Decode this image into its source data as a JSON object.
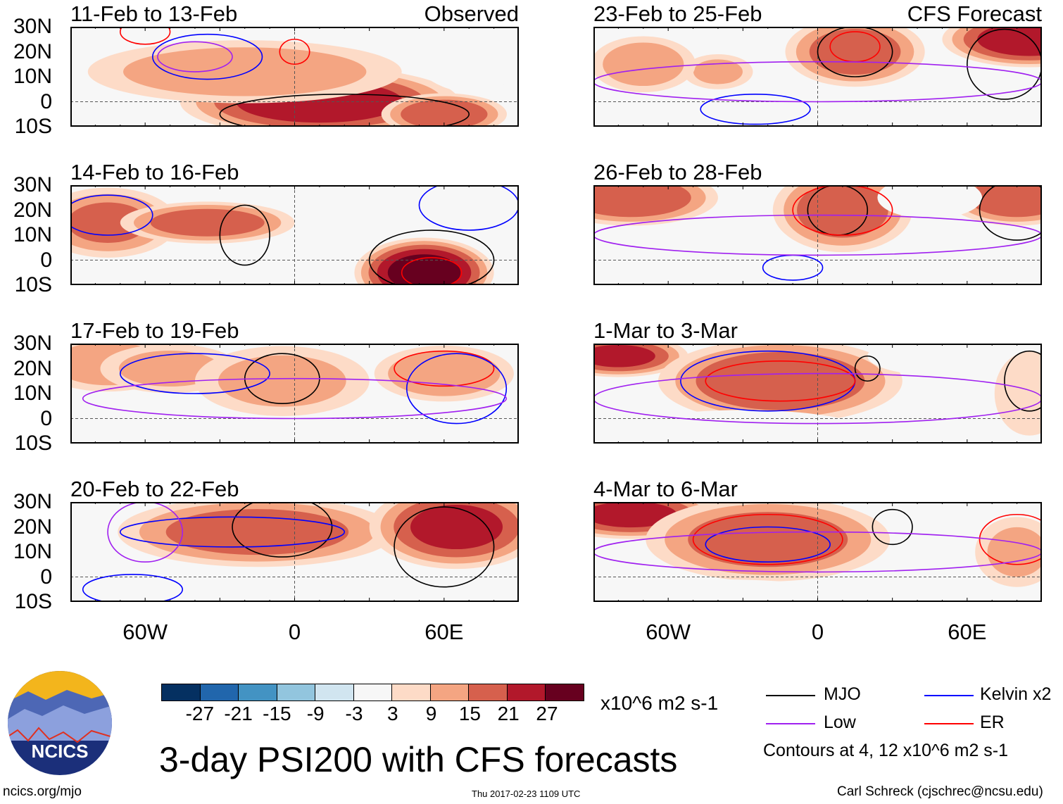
{
  "title": "3-day PSI200 with CFS forecasts",
  "footer": {
    "left": "ncics.org/mjo",
    "center": "Thu 2017-02-23 1109 UTC",
    "right": "Carl Schreck (cjschrec@ncsu.edu)"
  },
  "logo_text": "NCICS",
  "lat_labels": [
    "30N",
    "20N",
    "10N",
    "0",
    "10S"
  ],
  "lon_labels": [
    "60W",
    "0",
    "60E"
  ],
  "colorbar": {
    "colors": [
      "#053061",
      "#2166ac",
      "#4393c3",
      "#92c5de",
      "#d1e5f0",
      "#f7f7f7",
      "#fddbc7",
      "#f4a582",
      "#d6604d",
      "#b2182b",
      "#67001f"
    ],
    "labels": [
      "-27",
      "-21",
      "-15",
      "-9",
      "-3",
      "3",
      "9",
      "15",
      "21",
      "27"
    ],
    "units": "x10^6 m2 s-1"
  },
  "legend": {
    "items": [
      {
        "label": "MJO",
        "color": "#000000"
      },
      {
        "label": "Kelvin x2",
        "color": "#0000ff"
      },
      {
        "label": "Low",
        "color": "#a020f0"
      },
      {
        "label": "ER",
        "color": "#ff0000"
      }
    ],
    "note": "Contours at 4, 12 x10^6 m2 s-1"
  },
  "panels": [
    {
      "title": "11-Feb to 13-Feb",
      "label": "Observed",
      "anoms": [
        [
          35,
          25,
          -30,
          35,
          10
        ],
        [
          -30,
          20,
          -15,
          45,
          8
        ],
        [
          10,
          0,
          25,
          40,
          10
        ],
        [
          -20,
          12,
          12,
          45,
          9
        ],
        [
          60,
          -5,
          20,
          18,
          6
        ],
        [
          75,
          20,
          -18,
          20,
          12
        ]
      ],
      "contours": [
        [
          "#a020f0",
          -40,
          18,
          15,
          6
        ],
        [
          "#0000ff",
          -35,
          18,
          22,
          9
        ],
        [
          "#ff0000",
          0,
          20,
          6,
          5
        ],
        [
          "#000000",
          20,
          -5,
          50,
          8
        ],
        [
          "#ff0000",
          -60,
          28,
          10,
          5
        ]
      ]
    },
    {
      "title": "14-Feb to 16-Feb",
      "label": "",
      "anoms": [
        [
          -75,
          15,
          15,
          20,
          10
        ],
        [
          -35,
          15,
          18,
          25,
          6
        ],
        [
          40,
          27,
          -28,
          30,
          8
        ],
        [
          85,
          12,
          -30,
          20,
          14
        ],
        [
          52,
          -5,
          30,
          20,
          10
        ]
      ],
      "contours": [
        [
          "#0000ff",
          -75,
          18,
          18,
          8
        ],
        [
          "#000000",
          -20,
          10,
          10,
          12
        ],
        [
          "#000000",
          55,
          0,
          25,
          12
        ],
        [
          "#ff0000",
          55,
          -5,
          12,
          6
        ],
        [
          "#0000ff",
          70,
          22,
          20,
          10
        ]
      ]
    },
    {
      "title": "17-Feb to 19-Feb",
      "label": "",
      "anoms": [
        [
          -75,
          22,
          12,
          20,
          8
        ],
        [
          -50,
          20,
          10,
          20,
          7
        ],
        [
          -5,
          15,
          10,
          25,
          10
        ],
        [
          80,
          5,
          -20,
          25,
          18
        ],
        [
          -40,
          -5,
          -9,
          18,
          6
        ],
        [
          60,
          18,
          14,
          20,
          8
        ]
      ],
      "contours": [
        [
          "#000000",
          -5,
          16,
          15,
          10
        ],
        [
          "#0000ff",
          -40,
          18,
          30,
          8
        ],
        [
          "#ff0000",
          60,
          20,
          20,
          7
        ],
        [
          "#0000ff",
          65,
          12,
          20,
          14
        ],
        [
          "#a020f0",
          0,
          8,
          85,
          8
        ]
      ]
    },
    {
      "title": "20-Feb to 22-Feb",
      "label": "",
      "anoms": [
        [
          -60,
          20,
          -25,
          15,
          12
        ],
        [
          -15,
          18,
          18,
          40,
          10
        ],
        [
          65,
          20,
          22,
          25,
          12
        ],
        [
          -35,
          -5,
          -9,
          18,
          6
        ]
      ],
      "contours": [
        [
          "#000000",
          -5,
          20,
          20,
          12
        ],
        [
          "#0000ff",
          -25,
          18,
          45,
          6
        ],
        [
          "#000000",
          60,
          12,
          20,
          16
        ],
        [
          "#a020f0",
          -60,
          18,
          15,
          12
        ],
        [
          "#0000ff",
          -65,
          -5,
          20,
          6
        ]
      ]
    },
    {
      "title": "23-Feb to 25-Feb",
      "label": "CFS Forecast",
      "anoms": [
        [
          15,
          20,
          18,
          20,
          10
        ],
        [
          85,
          25,
          25,
          25,
          8
        ],
        [
          -40,
          12,
          9,
          10,
          5
        ],
        [
          -70,
          15,
          12,
          15,
          8
        ],
        [
          -25,
          -5,
          -5,
          20,
          5
        ]
      ],
      "contours": [
        [
          "#000000",
          15,
          20,
          15,
          10
        ],
        [
          "#ff0000",
          15,
          22,
          10,
          6
        ],
        [
          "#0000ff",
          -25,
          -3,
          22,
          6
        ],
        [
          "#000000",
          75,
          15,
          15,
          14
        ],
        [
          "#a020f0",
          0,
          8,
          90,
          8
        ]
      ]
    },
    {
      "title": "26-Feb to 28-Feb",
      "label": "",
      "anoms": [
        [
          -75,
          25,
          20,
          25,
          8
        ],
        [
          10,
          20,
          18,
          20,
          12
        ],
        [
          80,
          25,
          20,
          20,
          8
        ],
        [
          45,
          25,
          -12,
          15,
          6
        ],
        [
          -20,
          -5,
          -6,
          15,
          5
        ]
      ],
      "contours": [
        [
          "#000000",
          8,
          20,
          12,
          10
        ],
        [
          "#ff0000",
          10,
          20,
          20,
          10
        ],
        [
          "#0000ff",
          -10,
          -3,
          12,
          5
        ],
        [
          "#000000",
          80,
          20,
          15,
          12
        ],
        [
          "#a020f0",
          0,
          10,
          90,
          8
        ]
      ]
    },
    {
      "title": "1-Mar to 3-Mar",
      "label": "",
      "anoms": [
        [
          -80,
          25,
          22,
          20,
          6
        ],
        [
          -15,
          15,
          20,
          35,
          12
        ],
        [
          55,
          25,
          -10,
          25,
          6
        ],
        [
          -30,
          -5,
          -6,
          35,
          6
        ],
        [
          85,
          10,
          8,
          10,
          12
        ]
      ],
      "contours": [
        [
          "#0000ff",
          -20,
          15,
          35,
          12
        ],
        [
          "#ff0000",
          -15,
          15,
          30,
          8
        ],
        [
          "#000000",
          20,
          20,
          5,
          5
        ],
        [
          "#000000",
          85,
          15,
          10,
          12
        ],
        [
          "#a020f0",
          0,
          8,
          90,
          10
        ]
      ]
    },
    {
      "title": "4-Mar to 6-Mar",
      "label": "",
      "anoms": [
        [
          -75,
          25,
          22,
          25,
          7
        ],
        [
          -20,
          15,
          18,
          35,
          12
        ],
        [
          80,
          10,
          9,
          12,
          10
        ],
        [
          -40,
          -8,
          -6,
          40,
          5
        ]
      ],
      "contours": [
        [
          "#ff0000",
          -20,
          15,
          30,
          10
        ],
        [
          "#0000ff",
          -20,
          13,
          25,
          7
        ],
        [
          "#000000",
          30,
          20,
          8,
          7
        ],
        [
          "#ff0000",
          80,
          15,
          15,
          10
        ],
        [
          "#a020f0",
          0,
          10,
          90,
          8
        ]
      ]
    }
  ]
}
